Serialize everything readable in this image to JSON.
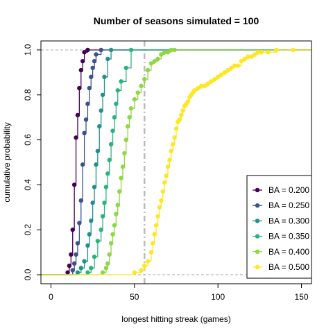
{
  "chart_data": {
    "type": "line",
    "title": "Number of seasons simulated = 100",
    "xlabel": "longest hitting streak (games)",
    "ylabel": "cumulative probability",
    "xlim": [
      -6,
      156
    ],
    "ylim": [
      -0.04,
      1.04
    ],
    "x_ticks": [
      0,
      50,
      100,
      150
    ],
    "y_ticks": [
      0.0,
      0.2,
      0.4,
      0.6,
      0.8,
      1.0
    ],
    "x_tick_labels": [
      "0",
      "50",
      "100",
      "150"
    ],
    "y_tick_labels": [
      "0.0",
      "0.2",
      "0.4",
      "0.6",
      "0.8",
      "1.0"
    ],
    "reference_lines": {
      "vertical_x": 56,
      "horizontal_y": [
        0,
        1
      ]
    },
    "legend_position": "bottom-right",
    "series": [
      {
        "name": "BA = 0.200",
        "color": "#440154",
        "x": [
          10,
          11,
          12,
          13,
          14,
          15,
          16,
          17,
          18,
          19,
          20,
          22
        ],
        "y": [
          0.01,
          0.04,
          0.09,
          0.2,
          0.4,
          0.61,
          0.71,
          0.83,
          0.91,
          0.95,
          0.99,
          1.0
        ]
      },
      {
        "name": "BA = 0.250",
        "color": "#3b528b",
        "x": [
          13,
          14,
          15,
          16,
          17,
          18,
          19,
          20,
          21,
          22,
          23,
          24,
          25,
          26,
          27,
          30
        ],
        "y": [
          0.02,
          0.05,
          0.09,
          0.14,
          0.23,
          0.33,
          0.49,
          0.63,
          0.69,
          0.76,
          0.83,
          0.88,
          0.92,
          0.95,
          0.98,
          1.0
        ]
      },
      {
        "name": "BA = 0.300",
        "color": "#21918c",
        "x": [
          16,
          18,
          20,
          22,
          23,
          24,
          25,
          26,
          27,
          28,
          29,
          30,
          31,
          32,
          34,
          36
        ],
        "y": [
          0.01,
          0.03,
          0.06,
          0.13,
          0.18,
          0.24,
          0.32,
          0.39,
          0.49,
          0.55,
          0.66,
          0.73,
          0.8,
          0.88,
          0.96,
          1.0
        ]
      },
      {
        "name": "BA = 0.350",
        "color": "#2db27d",
        "x": [
          22,
          24,
          26,
          28,
          30,
          31,
          32,
          33,
          34,
          35,
          36,
          37,
          38,
          39,
          40,
          42,
          45,
          48
        ],
        "y": [
          0.01,
          0.03,
          0.08,
          0.15,
          0.2,
          0.26,
          0.32,
          0.39,
          0.45,
          0.51,
          0.58,
          0.64,
          0.7,
          0.76,
          0.82,
          0.86,
          0.92,
          1.0
        ]
      },
      {
        "name": "BA = 0.400",
        "color": "#8fd744",
        "x": [
          31,
          33,
          34,
          35,
          36,
          37,
          38,
          39,
          40,
          41,
          42,
          43,
          44,
          45,
          46,
          47,
          48,
          50,
          52,
          54,
          56,
          58,
          60,
          62,
          64,
          66,
          68,
          70,
          72,
          74
        ],
        "y": [
          0.01,
          0.03,
          0.05,
          0.09,
          0.14,
          0.18,
          0.22,
          0.27,
          0.31,
          0.37,
          0.43,
          0.48,
          0.54,
          0.6,
          0.66,
          0.7,
          0.74,
          0.78,
          0.81,
          0.84,
          0.87,
          0.91,
          0.94,
          0.95,
          0.96,
          0.98,
          0.99,
          0.99,
          1.0,
          1.0
        ]
      },
      {
        "name": "BA = 0.500",
        "color": "#fde725",
        "x": [
          50,
          54,
          56,
          58,
          60,
          61,
          62,
          63,
          64,
          65,
          66,
          67,
          68,
          69,
          70,
          71,
          72,
          73,
          74,
          75,
          76,
          77,
          78,
          79,
          80,
          81,
          82,
          83,
          84,
          85,
          86,
          88,
          90,
          92,
          94,
          96,
          98,
          100,
          102,
          104,
          106,
          108,
          110,
          112,
          114,
          116,
          118,
          120,
          122,
          124,
          126,
          130,
          135,
          145
        ],
        "y": [
          0.01,
          0.02,
          0.04,
          0.06,
          0.1,
          0.14,
          0.18,
          0.22,
          0.26,
          0.3,
          0.33,
          0.37,
          0.41,
          0.44,
          0.48,
          0.51,
          0.55,
          0.58,
          0.61,
          0.65,
          0.68,
          0.69,
          0.71,
          0.73,
          0.75,
          0.76,
          0.77,
          0.79,
          0.8,
          0.81,
          0.82,
          0.83,
          0.84,
          0.84,
          0.85,
          0.86,
          0.87,
          0.88,
          0.89,
          0.9,
          0.91,
          0.92,
          0.93,
          0.93,
          0.95,
          0.96,
          0.97,
          0.97,
          0.98,
          0.99,
          0.99,
          0.99,
          1.0,
          1.0
        ]
      }
    ]
  }
}
